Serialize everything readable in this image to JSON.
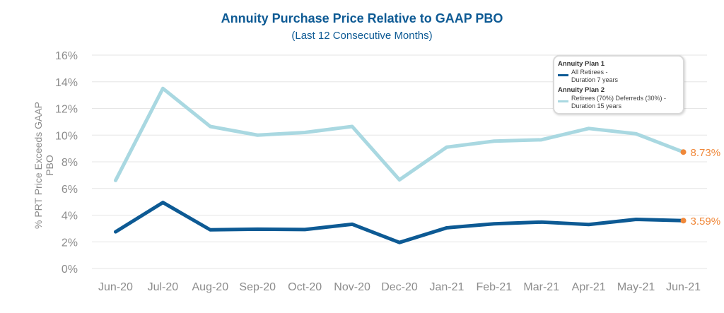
{
  "chart_data": {
    "type": "line",
    "title": "Annuity Purchase Price Relative to GAAP PBO",
    "subtitle": "(Last 12 Consecutive Months)",
    "ylabel": "% PRT Price Exceeds GAAP PBO",
    "xlabel": "",
    "ylim": [
      0,
      16
    ],
    "yticks": [
      "0%",
      "2%",
      "4%",
      "6%",
      "8%",
      "10%",
      "12%",
      "14%",
      "16%"
    ],
    "categories": [
      "Jun-20",
      "Jul-20",
      "Aug-20",
      "Sep-20",
      "Oct-20",
      "Nov-20",
      "Dec-20",
      "Jan-21",
      "Feb-21",
      "Mar-21",
      "Apr-21",
      "May-21",
      "Jun-21"
    ],
    "series": [
      {
        "name": "Annuity Plan 1",
        "description_line1": "All Retirees -",
        "description_line2": "Duration 7 years",
        "color": "#0d5a94",
        "values": [
          2.75,
          4.95,
          2.9,
          2.95,
          2.92,
          3.32,
          1.95,
          3.05,
          3.35,
          3.48,
          3.3,
          3.68,
          3.59
        ],
        "end_label": "3.59%"
      },
      {
        "name": "Annuity Plan 2",
        "description_line1": "Retirees (70%) Deferreds (30%) -",
        "description_line2": "Duration 15 years",
        "color": "#a9d8e1",
        "values": [
          6.6,
          13.5,
          10.65,
          10.0,
          10.2,
          10.65,
          6.65,
          9.1,
          9.55,
          9.65,
          10.5,
          10.1,
          8.73
        ],
        "end_label": "8.73%"
      }
    ],
    "grid": true,
    "legend_position": "top-right",
    "colors": {
      "title": "#0d5a94",
      "axis_text": "#8c8c8c",
      "grid": "#e6e6e6",
      "highlight": "#f0883a"
    }
  }
}
